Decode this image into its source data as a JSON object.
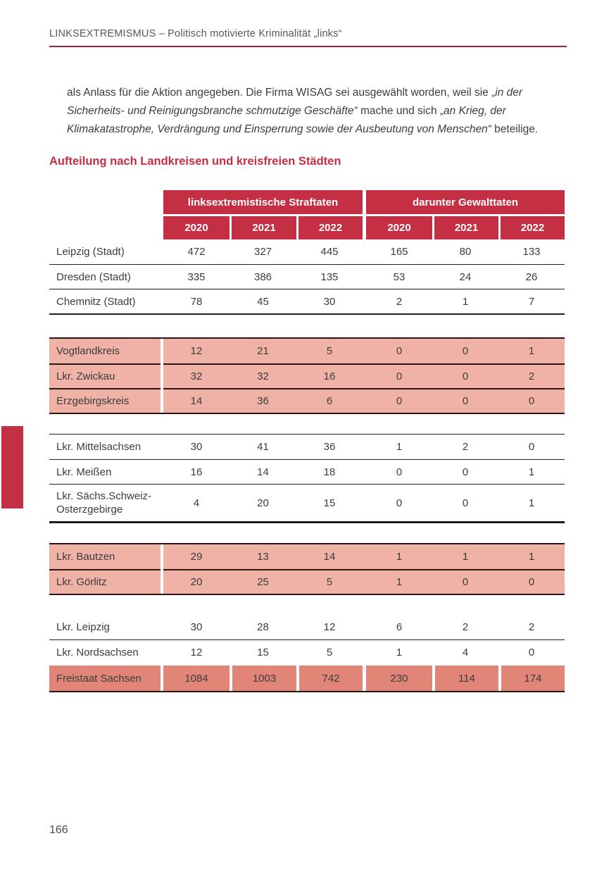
{
  "page": {
    "running_head": "LINKSEXTREMISMUS – Politisch motivierte Kriminalität „links“",
    "page_number": "166"
  },
  "paragraph": {
    "segments": [
      {
        "text": "als Anlass für die Aktion angegeben. Die Firma WISAG sei ausgewählt worden, weil sie „",
        "italic": false
      },
      {
        "text": "in der Sicherheits- und Reinigungsbranche schmutzige Geschäfte“",
        "italic": true
      },
      {
        "text": " mache und sich „",
        "italic": false
      },
      {
        "text": "an Krieg, der Klimakatastrophe, Verdrängung und Einsperrung sowie der Ausbeutung von Menschen“",
        "italic": true
      },
      {
        "text": " beteilige.",
        "italic": false
      }
    ]
  },
  "section_title": "Aufteilung nach Landkreisen und kreisfreien Städten",
  "table": {
    "group_headers": [
      "linksextremistische Straftaten",
      "darunter Gewalttaten"
    ],
    "year_headers": [
      "2020",
      "2021",
      "2022",
      "2020",
      "2021",
      "2022"
    ],
    "groups": [
      {
        "style": "white",
        "rows": [
          {
            "label": "Leipzig (Stadt)",
            "values": [
              "472",
              "327",
              "445",
              "165",
              "80",
              "133"
            ]
          },
          {
            "label": "Dresden (Stadt)",
            "values": [
              "335",
              "386",
              "135",
              "53",
              "24",
              "26"
            ]
          },
          {
            "label": "Chemnitz (Stadt)",
            "values": [
              "78",
              "45",
              "30",
              "2",
              "1",
              "7"
            ]
          }
        ]
      },
      {
        "style": "pink",
        "rows": [
          {
            "label": "Vogtlandkreis",
            "values": [
              "12",
              "21",
              "5",
              "0",
              "0",
              "1"
            ]
          },
          {
            "label": "Lkr. Zwickau",
            "values": [
              "32",
              "32",
              "16",
              "0",
              "0",
              "2"
            ]
          },
          {
            "label": "Erzgebirgskreis",
            "values": [
              "14",
              "36",
              "6",
              "0",
              "0",
              "0"
            ]
          }
        ]
      },
      {
        "style": "white",
        "rows": [
          {
            "label": "Lkr. Mittelsachsen",
            "values": [
              "30",
              "41",
              "36",
              "1",
              "2",
              "0"
            ]
          },
          {
            "label": "Lkr. Meißen",
            "values": [
              "16",
              "14",
              "18",
              "0",
              "0",
              "1"
            ]
          },
          {
            "label": "Lkr. Sächs.Schweiz-\nOsterzgebirge",
            "values": [
              "4",
              "20",
              "15",
              "0",
              "0",
              "1"
            ]
          }
        ]
      },
      {
        "style": "pink",
        "rows": [
          {
            "label": "Lkr. Bautzen",
            "values": [
              "29",
              "13",
              "14",
              "1",
              "1",
              "1"
            ]
          },
          {
            "label": "Lkr. Görlitz",
            "values": [
              "20",
              "25",
              "5",
              "1",
              "0",
              "0"
            ]
          }
        ]
      },
      {
        "style": "white",
        "rows": [
          {
            "label": "Lkr. Leipzig",
            "values": [
              "30",
              "28",
              "12",
              "6",
              "2",
              "2"
            ]
          },
          {
            "label": "Lkr. Nordsachsen",
            "values": [
              "12",
              "15",
              "5",
              "1",
              "4",
              "0"
            ]
          }
        ]
      },
      {
        "style": "total",
        "rows": [
          {
            "label": "Freistaat Sachsen",
            "values": [
              "1084",
              "1003",
              "742",
              "230",
              "114",
              "174"
            ]
          }
        ]
      }
    ]
  },
  "colors": {
    "accent": "#C42F44",
    "rule": "#A02134",
    "pink_row": "#F0B2A6",
    "total_row": "#E28579",
    "dark_line": "#2A1712",
    "black_line": "#1D1D1B",
    "body_text": "#3C3C3B",
    "running_head_text": "#575756"
  }
}
